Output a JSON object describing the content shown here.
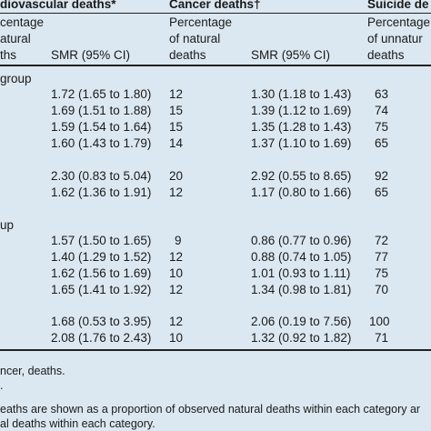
{
  "headers": {
    "cardio_title": "diovascular deaths*",
    "cancer_title": "Cancer deaths†",
    "suicide_title": "Suicide de",
    "pct_col1_line1": "centage",
    "pct_col1_line2": "atural",
    "pct_col1_line3": "ths",
    "smr_label": "SMR (95% CI)",
    "pct_natural_line1": "Percentage",
    "pct_natural_line2": "of natural",
    "pct_natural_line3": "deaths",
    "smr_label_2": "SMR (95% CI)",
    "pct_unnatural_line1": "Percentage",
    "pct_unnatural_line2": "of unnatur",
    "pct_unnatural_line3": "deaths"
  },
  "groups": [
    {
      "label": "group",
      "rows": [
        {
          "cardio_smr": "1.72 (1.65 to 1.80)",
          "cancer_pct": "12",
          "cancer_smr": "1.30 (1.18 to 1.43)",
          "suicide_pct": "63"
        },
        {
          "cardio_smr": "1.69 (1.51 to 1.88)",
          "cancer_pct": "15",
          "cancer_smr": "1.39 (1.12 to 1.69)",
          "suicide_pct": "74"
        },
        {
          "cardio_smr": "1.59 (1.54 to 1.64)",
          "cancer_pct": "15",
          "cancer_smr": "1.35 (1.28 to 1.43)",
          "suicide_pct": "75"
        },
        {
          "cardio_smr": "1.60 (1.43 to 1.79)",
          "cancer_pct": "14",
          "cancer_smr": "1.37 (1.10 to 1.69)",
          "suicide_pct": "65"
        },
        {
          "cardio_smr": "2.30 (0.83 to 5.04)",
          "cancer_pct": "20",
          "cancer_smr": "2.92 (0.55 to 8.65)",
          "suicide_pct": "92"
        },
        {
          "cardio_smr": "1.62 (1.36 to 1.91)",
          "cancer_pct": "12",
          "cancer_smr": "1.17 (0.80 to 1.66)",
          "suicide_pct": "65"
        }
      ]
    },
    {
      "label": "up",
      "rows": [
        {
          "cardio_smr": "1.57 (1.50 to 1.65)",
          "cancer_pct": "9",
          "cancer_smr": "0.86 (0.77 to 0.96)",
          "suicide_pct": "72"
        },
        {
          "cardio_smr": "1.40 (1.29 to 1.52)",
          "cancer_pct": "12",
          "cancer_smr": "0.88 (0.74 to 1.05)",
          "suicide_pct": "77"
        },
        {
          "cardio_smr": "1.62 (1.56 to 1.69)",
          "cancer_pct": "10",
          "cancer_smr": "1.01 (0.93 to 1.11)",
          "suicide_pct": "75"
        },
        {
          "cardio_smr": "1.65 (1.41 to 1.92)",
          "cancer_pct": "12",
          "cancer_smr": "1.34 (0.98 to 1.81)",
          "suicide_pct": "70"
        },
        {
          "cardio_smr": "1.68 (0.53 to 3.95)",
          "cancer_pct": "12",
          "cancer_smr": "2.06 (0.19 to 7.56)",
          "suicide_pct": "100"
        },
        {
          "cardio_smr": "2.08 (1.76 to 2.43)",
          "cancer_pct": "10",
          "cancer_smr": "1.32 (0.92 to 1.82)",
          "suicide_pct": "71"
        }
      ]
    }
  ],
  "footnotes": {
    "line1": "ncer, deaths.",
    "line2": ".",
    "line3": "eaths are shown as a proportion of observed natural deaths within each category ar",
    "line4": "al deaths within each category."
  }
}
